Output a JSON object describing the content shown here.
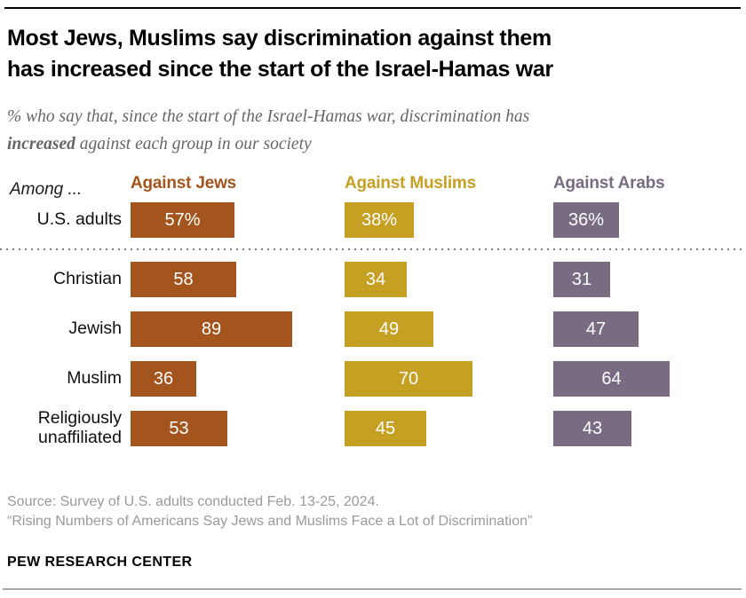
{
  "header": {
    "title_line1": "Most Jews, Muslims say discrimination against them",
    "title_line2": "has increased since the start of the Israel-Hamas war",
    "subtitle_line1": "% who say that, since the start of the Israel-Hamas war, discrimination has",
    "subtitle_bold": "increased",
    "subtitle_line2_rest": " against each group in our society"
  },
  "chart_data": {
    "type": "bar",
    "orientation": "horizontal",
    "among_label": "Among ...",
    "categories": [
      "U.S. adults",
      "Christian",
      "Jewish",
      "Muslim",
      "Religiously unaffiliated"
    ],
    "series": [
      {
        "name": "Against Jews",
        "color": "#A4541D",
        "values": [
          57,
          58,
          89,
          36,
          53
        ],
        "display": [
          "57%",
          "58",
          "89",
          "36",
          "53"
        ]
      },
      {
        "name": "Against Muslims",
        "color": "#C5A023",
        "values": [
          38,
          34,
          49,
          70,
          45
        ],
        "display": [
          "38%",
          "34",
          "49",
          "70",
          "45"
        ]
      },
      {
        "name": "Against Arabs",
        "color": "#796C82",
        "values": [
          36,
          31,
          47,
          64,
          43
        ],
        "display": [
          "36%",
          "31",
          "47",
          "64",
          "43"
        ]
      }
    ],
    "xlim": [
      0,
      100
    ],
    "value_unit": "%",
    "grid": false,
    "legend_position": "column-headers",
    "separator_after_category_index": 0
  },
  "footer": {
    "source_line1": "Source: Survey of U.S. adults conducted Feb. 13-25, 2024.",
    "source_line2": "“Rising Numbers of Americans Say Jews and Muslims Face a Lot of Discrimination”",
    "brand": "PEW RESEARCH CENTER"
  }
}
